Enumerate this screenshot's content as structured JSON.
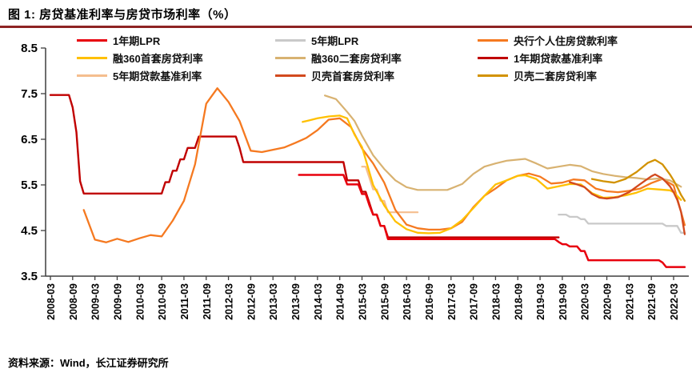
{
  "header": {
    "figure_label": "图 1: 房贷基准利率与房贷市场利率（%）",
    "rule_color": "#8E2323"
  },
  "footer": {
    "source": "资料来源：Wind，长江证券研究所"
  },
  "chart_data": {
    "type": "line",
    "title": "房贷基准利率与房贷市场利率（%）",
    "grid": false,
    "legend_position": "top",
    "ylim": [
      3.5,
      8.5
    ],
    "yticks": [
      "3.5",
      "4.5",
      "5.5",
      "6.5",
      "7.5",
      "8.5"
    ],
    "x_start": "2008-03",
    "x_end": "2022-06",
    "xtick_labels": [
      "2008-03",
      "2008-09",
      "2009-03",
      "2009-09",
      "2010-03",
      "2010-09",
      "2011-03",
      "2011-09",
      "2012-03",
      "2012-09",
      "2013-03",
      "2013-09",
      "2014-03",
      "2014-09",
      "2015-03",
      "2015-09",
      "2016-03",
      "2016-09",
      "2017-03",
      "2017-09",
      "2018-03",
      "2018-09",
      "2019-03",
      "2019-09",
      "2020-03",
      "2020-09",
      "2021-03",
      "2021-09",
      "2022-03"
    ],
    "legend_order": [
      "1年期LPR",
      "5年期LPR",
      "央行个人住房贷款利率",
      "融360首套房贷利率",
      "融360二套房贷利率",
      "1年期贷款基准利率",
      "5年期贷款基准利率",
      "贝壳首套房贷利率",
      "贝壳二套房贷利率"
    ],
    "series": [
      {
        "name": "5年期贷款基准利率",
        "color": "#F5BE8E",
        "width": 2.2,
        "points": [
          [
            "2015-03",
            5.9
          ],
          [
            "2015-04",
            5.9
          ],
          [
            "2015-05",
            5.65
          ],
          [
            "2015-06",
            5.4
          ],
          [
            "2015-07",
            5.4
          ],
          [
            "2015-08",
            5.15
          ],
          [
            "2015-09",
            5.15
          ],
          [
            "2015-10",
            4.9
          ],
          [
            "2016-06",
            4.9
          ]
        ]
      },
      {
        "name": "1年期贷款基准利率",
        "color": "#C00000",
        "width": 2.4,
        "points": [
          [
            "2008-03",
            7.47
          ],
          [
            "2008-08",
            7.47
          ],
          [
            "2008-09",
            7.2
          ],
          [
            "2008-10",
            6.66
          ],
          [
            "2008-11",
            5.58
          ],
          [
            "2008-12",
            5.31
          ],
          [
            "2010-09",
            5.31
          ],
          [
            "2010-10",
            5.56
          ],
          [
            "2010-11",
            5.56
          ],
          [
            "2010-12",
            5.81
          ],
          [
            "2011-01",
            5.81
          ],
          [
            "2011-02",
            6.06
          ],
          [
            "2011-03",
            6.06
          ],
          [
            "2011-04",
            6.31
          ],
          [
            "2011-06",
            6.31
          ],
          [
            "2011-07",
            6.56
          ],
          [
            "2012-05",
            6.56
          ],
          [
            "2012-06",
            6.31
          ],
          [
            "2012-07",
            6.0
          ],
          [
            "2014-10",
            6.0
          ],
          [
            "2014-11",
            5.6
          ],
          [
            "2015-02",
            5.6
          ],
          [
            "2015-03",
            5.35
          ],
          [
            "2015-04",
            5.35
          ],
          [
            "2015-05",
            5.1
          ],
          [
            "2015-06",
            4.85
          ],
          [
            "2015-07",
            4.85
          ],
          [
            "2015-08",
            4.6
          ],
          [
            "2015-09",
            4.6
          ],
          [
            "2015-10",
            4.35
          ],
          [
            "2019-08",
            4.35
          ]
        ]
      },
      {
        "name": "央行个人住房贷款利率",
        "color": "#F57920",
        "width": 2.3,
        "points": [
          [
            "2008-12",
            4.95
          ],
          [
            "2009-03",
            4.3
          ],
          [
            "2009-06",
            4.24
          ],
          [
            "2009-09",
            4.32
          ],
          [
            "2009-12",
            4.25
          ],
          [
            "2010-03",
            4.33
          ],
          [
            "2010-06",
            4.4
          ],
          [
            "2010-09",
            4.37
          ],
          [
            "2010-12",
            4.72
          ],
          [
            "2011-03",
            5.15
          ],
          [
            "2011-06",
            5.95
          ],
          [
            "2011-09",
            7.28
          ],
          [
            "2011-12",
            7.62
          ],
          [
            "2012-03",
            7.32
          ],
          [
            "2012-06",
            6.9
          ],
          [
            "2012-09",
            6.25
          ],
          [
            "2012-12",
            6.22
          ],
          [
            "2013-03",
            6.27
          ],
          [
            "2013-06",
            6.32
          ],
          [
            "2013-09",
            6.42
          ],
          [
            "2013-12",
            6.53
          ],
          [
            "2014-03",
            6.7
          ],
          [
            "2014-06",
            6.93
          ],
          [
            "2014-09",
            6.96
          ],
          [
            "2014-12",
            6.77
          ],
          [
            "2015-03",
            6.3
          ],
          [
            "2015-06",
            5.97
          ],
          [
            "2015-09",
            5.55
          ],
          [
            "2015-12",
            4.95
          ],
          [
            "2016-03",
            4.63
          ],
          [
            "2016-06",
            4.55
          ],
          [
            "2016-09",
            4.52
          ],
          [
            "2016-12",
            4.52
          ],
          [
            "2017-03",
            4.55
          ],
          [
            "2017-06",
            4.69
          ],
          [
            "2017-09",
            5.01
          ],
          [
            "2017-12",
            5.26
          ],
          [
            "2018-03",
            5.42
          ],
          [
            "2018-06",
            5.6
          ],
          [
            "2018-09",
            5.7
          ],
          [
            "2018-12",
            5.75
          ],
          [
            "2019-03",
            5.68
          ],
          [
            "2019-06",
            5.53
          ],
          [
            "2019-09",
            5.55
          ],
          [
            "2019-12",
            5.62
          ],
          [
            "2020-03",
            5.6
          ],
          [
            "2020-06",
            5.42
          ],
          [
            "2020-09",
            5.36
          ],
          [
            "2020-12",
            5.34
          ],
          [
            "2021-03",
            5.37
          ],
          [
            "2021-06",
            5.42
          ],
          [
            "2021-09",
            5.54
          ],
          [
            "2021-12",
            5.63
          ],
          [
            "2022-03",
            5.49
          ],
          [
            "2022-06",
            4.62
          ]
        ]
      },
      {
        "name": "融360二套房贷利率",
        "color": "#D8B271",
        "width": 2.2,
        "points": [
          [
            "2014-05",
            7.46
          ],
          [
            "2014-08",
            7.38
          ],
          [
            "2014-11",
            7.1
          ],
          [
            "2015-01",
            6.9
          ],
          [
            "2015-03",
            6.58
          ],
          [
            "2015-06",
            6.15
          ],
          [
            "2015-09",
            5.85
          ],
          [
            "2015-12",
            5.6
          ],
          [
            "2016-03",
            5.45
          ],
          [
            "2016-06",
            5.39
          ],
          [
            "2017-02",
            5.39
          ],
          [
            "2017-06",
            5.52
          ],
          [
            "2017-09",
            5.74
          ],
          [
            "2017-12",
            5.9
          ],
          [
            "2018-03",
            5.97
          ],
          [
            "2018-06",
            6.03
          ],
          [
            "2018-11",
            6.07
          ],
          [
            "2019-02",
            5.97
          ],
          [
            "2019-05",
            5.86
          ],
          [
            "2019-08",
            5.9
          ],
          [
            "2019-11",
            5.94
          ],
          [
            "2020-02",
            5.91
          ],
          [
            "2020-05",
            5.8
          ],
          [
            "2020-08",
            5.74
          ],
          [
            "2020-11",
            5.7
          ],
          [
            "2021-02",
            5.67
          ],
          [
            "2021-05",
            5.65
          ],
          [
            "2021-08",
            5.62
          ],
          [
            "2021-11",
            5.64
          ],
          [
            "2022-02",
            5.6
          ],
          [
            "2022-05",
            5.46
          ]
        ]
      },
      {
        "name": "融360首套房贷利率",
        "color": "#FFC000",
        "width": 2.3,
        "points": [
          [
            "2013-11",
            6.88
          ],
          [
            "2014-01",
            6.92
          ],
          [
            "2014-03",
            6.96
          ],
          [
            "2014-06",
            7.0
          ],
          [
            "2014-09",
            7.02
          ],
          [
            "2014-11",
            6.96
          ],
          [
            "2015-01",
            6.6
          ],
          [
            "2015-03",
            6.33
          ],
          [
            "2015-06",
            5.5
          ],
          [
            "2015-09",
            5.05
          ],
          [
            "2015-12",
            4.7
          ],
          [
            "2016-03",
            4.53
          ],
          [
            "2016-06",
            4.45
          ],
          [
            "2016-09",
            4.44
          ],
          [
            "2016-12",
            4.45
          ],
          [
            "2017-03",
            4.55
          ],
          [
            "2017-06",
            4.73
          ],
          [
            "2017-09",
            4.99
          ],
          [
            "2017-12",
            5.26
          ],
          [
            "2018-03",
            5.51
          ],
          [
            "2018-06",
            5.6
          ],
          [
            "2018-09",
            5.7
          ],
          [
            "2018-11",
            5.71
          ],
          [
            "2019-02",
            5.63
          ],
          [
            "2019-05",
            5.42
          ],
          [
            "2019-08",
            5.47
          ],
          [
            "2019-11",
            5.52
          ],
          [
            "2020-02",
            5.51
          ],
          [
            "2020-05",
            5.32
          ],
          [
            "2020-08",
            5.22
          ],
          [
            "2020-11",
            5.23
          ],
          [
            "2021-02",
            5.27
          ],
          [
            "2021-05",
            5.33
          ],
          [
            "2021-08",
            5.42
          ],
          [
            "2021-11",
            5.4
          ],
          [
            "2022-02",
            5.38
          ],
          [
            "2022-03",
            5.34
          ],
          [
            "2022-05",
            5.17
          ]
        ]
      },
      {
        "name": "1年期LPR",
        "color": "#E8000D",
        "width": 2.5,
        "points": [
          [
            "2013-10",
            5.72
          ],
          [
            "2014-10",
            5.72
          ],
          [
            "2014-11",
            5.51
          ],
          [
            "2015-02",
            5.51
          ],
          [
            "2015-03",
            5.3
          ],
          [
            "2015-04",
            5.3
          ],
          [
            "2015-05",
            5.05
          ],
          [
            "2015-06",
            4.85
          ],
          [
            "2015-07",
            4.85
          ],
          [
            "2015-08",
            4.6
          ],
          [
            "2015-09",
            4.6
          ],
          [
            "2015-10",
            4.31
          ],
          [
            "2019-07",
            4.31
          ],
          [
            "2019-08",
            4.25
          ],
          [
            "2019-09",
            4.2
          ],
          [
            "2019-10",
            4.2
          ],
          [
            "2019-11",
            4.15
          ],
          [
            "2020-01",
            4.15
          ],
          [
            "2020-02",
            4.05
          ],
          [
            "2020-03",
            4.05
          ],
          [
            "2020-04",
            3.85
          ],
          [
            "2021-11",
            3.85
          ],
          [
            "2021-12",
            3.8
          ],
          [
            "2022-01",
            3.7
          ],
          [
            "2022-06",
            3.7
          ]
        ]
      },
      {
        "name": "5年期LPR",
        "color": "#C9C9C9",
        "width": 2.3,
        "points": [
          [
            "2019-08",
            4.85
          ],
          [
            "2019-10",
            4.85
          ],
          [
            "2019-11",
            4.8
          ],
          [
            "2020-01",
            4.8
          ],
          [
            "2020-02",
            4.75
          ],
          [
            "2020-03",
            4.75
          ],
          [
            "2020-04",
            4.65
          ],
          [
            "2021-12",
            4.65
          ],
          [
            "2022-01",
            4.6
          ],
          [
            "2022-04",
            4.6
          ],
          [
            "2022-05",
            4.45
          ],
          [
            "2022-06",
            4.45
          ]
        ]
      },
      {
        "name": "贝壳二套房贷利率",
        "color": "#D29200",
        "width": 2.3,
        "points": [
          [
            "2020-05",
            5.63
          ],
          [
            "2020-08",
            5.58
          ],
          [
            "2020-11",
            5.55
          ],
          [
            "2021-02",
            5.63
          ],
          [
            "2021-05",
            5.78
          ],
          [
            "2021-08",
            5.98
          ],
          [
            "2021-10",
            6.05
          ],
          [
            "2021-12",
            5.95
          ],
          [
            "2022-01",
            5.84
          ],
          [
            "2022-02",
            5.73
          ],
          [
            "2022-03",
            5.6
          ],
          [
            "2022-04",
            5.45
          ],
          [
            "2022-05",
            5.28
          ],
          [
            "2022-06",
            5.15
          ]
        ]
      },
      {
        "name": "贝壳首套房贷利率",
        "color": "#D2491E",
        "width": 2.3,
        "points": [
          [
            "2019-11",
            5.56
          ],
          [
            "2020-01",
            5.51
          ],
          [
            "2020-03",
            5.45
          ],
          [
            "2020-05",
            5.3
          ],
          [
            "2020-07",
            5.22
          ],
          [
            "2020-09",
            5.2
          ],
          [
            "2020-12",
            5.23
          ],
          [
            "2021-03",
            5.34
          ],
          [
            "2021-06",
            5.52
          ],
          [
            "2021-09",
            5.69
          ],
          [
            "2021-10",
            5.73
          ],
          [
            "2021-12",
            5.64
          ],
          [
            "2022-01",
            5.56
          ],
          [
            "2022-02",
            5.47
          ],
          [
            "2022-03",
            5.34
          ],
          [
            "2022-04",
            5.17
          ],
          [
            "2022-05",
            4.91
          ],
          [
            "2022-06",
            4.42
          ]
        ]
      }
    ]
  }
}
